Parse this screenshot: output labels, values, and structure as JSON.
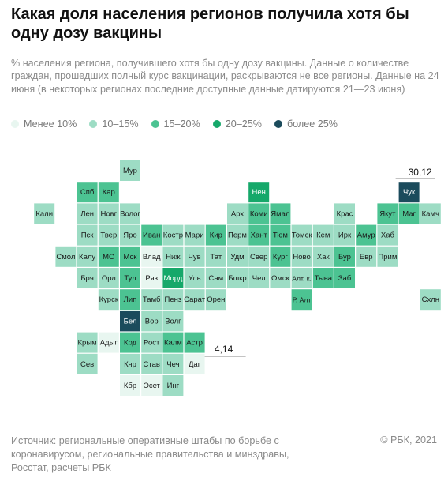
{
  "title": "Какая доля населения регионов получила хотя бы одну дозу вакцины",
  "subtitle": "% населения региона, получившего хотя бы одну дозу вакцины. Данные о количестве граждан, прошедших полный курс вакцинации, раскрываются не все регионы. Данные на 24 июня (в некоторых регионах последние доступные данные датируются 21—23 июня)",
  "footer": "Источник:  региональные оперативные штабы по борьбе с коронавирусом, региональные правительства и минздравы, Росстат, расчеты РБК",
  "copyright": "© РБК, 2021",
  "colors": {
    "lt10": "#e8f6f0",
    "10_15": "#9ddcc4",
    "15_20": "#4cc392",
    "20_25": "#16a86a",
    "gt25": "#1b4b5c"
  },
  "legend": [
    {
      "label": "Менее 10%",
      "color": "#e8f6f0"
    },
    {
      "label": "10–15%",
      "color": "#9ddcc4"
    },
    {
      "label": "15–20%",
      "color": "#4cc392"
    },
    {
      "label": "20–25%",
      "color": "#16a86a"
    },
    {
      "label": "более 25%",
      "color": "#1b4b5c"
    }
  ],
  "chart_data": {
    "type": "heatmap",
    "annotations": [
      {
        "region": "Чук",
        "value": "30,12"
      },
      {
        "region": "Даг",
        "value": "4,14"
      }
    ],
    "regions": [
      {
        "name": "Мур",
        "col": 5,
        "row": 0,
        "bin": "10_15"
      },
      {
        "name": "Спб",
        "col": 3,
        "row": 1,
        "bin": "15_20"
      },
      {
        "name": "Кар",
        "col": 4,
        "row": 1,
        "bin": "15_20"
      },
      {
        "name": "Нен",
        "col": 11,
        "row": 1,
        "bin": "20_25"
      },
      {
        "name": "Чук",
        "col": 18,
        "row": 1,
        "bin": "gt25"
      },
      {
        "name": "Кали",
        "col": 1,
        "row": 2,
        "bin": "10_15"
      },
      {
        "name": "Лен",
        "col": 3,
        "row": 2,
        "bin": "10_15"
      },
      {
        "name": "Новг",
        "col": 4,
        "row": 2,
        "bin": "10_15"
      },
      {
        "name": "Волог",
        "col": 5,
        "row": 2,
        "bin": "10_15"
      },
      {
        "name": "Арх",
        "col": 10,
        "row": 2,
        "bin": "10_15"
      },
      {
        "name": "Коми",
        "col": 11,
        "row": 2,
        "bin": "15_20"
      },
      {
        "name": "Ямал",
        "col": 12,
        "row": 2,
        "bin": "15_20"
      },
      {
        "name": "Крас",
        "col": 15,
        "row": 2,
        "bin": "10_15"
      },
      {
        "name": "Якут",
        "col": 17,
        "row": 2,
        "bin": "15_20"
      },
      {
        "name": "Маг",
        "col": 18,
        "row": 2,
        "bin": "15_20"
      },
      {
        "name": "Камч",
        "col": 19,
        "row": 2,
        "bin": "10_15"
      },
      {
        "name": "Пск",
        "col": 3,
        "row": 3,
        "bin": "10_15"
      },
      {
        "name": "Твер",
        "col": 4,
        "row": 3,
        "bin": "10_15"
      },
      {
        "name": "Яро",
        "col": 5,
        "row": 3,
        "bin": "10_15"
      },
      {
        "name": "Иван",
        "col": 6,
        "row": 3,
        "bin": "15_20"
      },
      {
        "name": "Костр",
        "col": 7,
        "row": 3,
        "bin": "10_15"
      },
      {
        "name": "Мари",
        "col": 8,
        "row": 3,
        "bin": "10_15"
      },
      {
        "name": "Кир",
        "col": 9,
        "row": 3,
        "bin": "15_20"
      },
      {
        "name": "Перм",
        "col": 10,
        "row": 3,
        "bin": "10_15"
      },
      {
        "name": "Хант",
        "col": 11,
        "row": 3,
        "bin": "15_20"
      },
      {
        "name": "Тюм",
        "col": 12,
        "row": 3,
        "bin": "15_20"
      },
      {
        "name": "Томск",
        "col": 13,
        "row": 3,
        "bin": "10_15"
      },
      {
        "name": "Кем",
        "col": 14,
        "row": 3,
        "bin": "10_15"
      },
      {
        "name": "Ирк",
        "col": 15,
        "row": 3,
        "bin": "10_15"
      },
      {
        "name": "Амур",
        "col": 16,
        "row": 3,
        "bin": "15_20"
      },
      {
        "name": "Хаб",
        "col": 17,
        "row": 3,
        "bin": "10_15"
      },
      {
        "name": "Смол",
        "col": 2,
        "row": 4,
        "bin": "10_15"
      },
      {
        "name": "Калу",
        "col": 3,
        "row": 4,
        "bin": "10_15"
      },
      {
        "name": "МО",
        "col": 4,
        "row": 4,
        "bin": "15_20"
      },
      {
        "name": "Мск",
        "col": 5,
        "row": 4,
        "bin": "15_20"
      },
      {
        "name": "Влад",
        "col": 6,
        "row": 4,
        "bin": "lt10"
      },
      {
        "name": "Ниж",
        "col": 7,
        "row": 4,
        "bin": "10_15"
      },
      {
        "name": "Чув",
        "col": 8,
        "row": 4,
        "bin": "10_15"
      },
      {
        "name": "Тат",
        "col": 9,
        "row": 4,
        "bin": "10_15"
      },
      {
        "name": "Удм",
        "col": 10,
        "row": 4,
        "bin": "10_15"
      },
      {
        "name": "Свер",
        "col": 11,
        "row": 4,
        "bin": "10_15"
      },
      {
        "name": "Кург",
        "col": 12,
        "row": 4,
        "bin": "15_20"
      },
      {
        "name": "Ново",
        "col": 13,
        "row": 4,
        "bin": "10_15"
      },
      {
        "name": "Хак",
        "col": 14,
        "row": 4,
        "bin": "10_15"
      },
      {
        "name": "Бур",
        "col": 15,
        "row": 4,
        "bin": "15_20"
      },
      {
        "name": "Евр",
        "col": 16,
        "row": 4,
        "bin": "10_15"
      },
      {
        "name": "Прим",
        "col": 17,
        "row": 4,
        "bin": "10_15"
      },
      {
        "name": "Бря",
        "col": 3,
        "row": 5,
        "bin": "10_15"
      },
      {
        "name": "Орл",
        "col": 4,
        "row": 5,
        "bin": "10_15"
      },
      {
        "name": "Тул",
        "col": 5,
        "row": 5,
        "bin": "15_20"
      },
      {
        "name": "Ряз",
        "col": 6,
        "row": 5,
        "bin": "lt10"
      },
      {
        "name": "Морд",
        "col": 7,
        "row": 5,
        "bin": "20_25"
      },
      {
        "name": "Уль",
        "col": 8,
        "row": 5,
        "bin": "10_15"
      },
      {
        "name": "Сам",
        "col": 9,
        "row": 5,
        "bin": "10_15"
      },
      {
        "name": "Бшкр",
        "col": 10,
        "row": 5,
        "bin": "10_15"
      },
      {
        "name": "Чел",
        "col": 11,
        "row": 5,
        "bin": "10_15"
      },
      {
        "name": "Омск",
        "col": 12,
        "row": 5,
        "bin": "10_15"
      },
      {
        "name": "Алт. к.",
        "col": 13,
        "row": 5,
        "bin": "10_15"
      },
      {
        "name": "Тыва",
        "col": 14,
        "row": 5,
        "bin": "15_20"
      },
      {
        "name": "Заб",
        "col": 15,
        "row": 5,
        "bin": "15_20"
      },
      {
        "name": "Курск",
        "col": 4,
        "row": 6,
        "bin": "10_15"
      },
      {
        "name": "Лип",
        "col": 5,
        "row": 6,
        "bin": "15_20"
      },
      {
        "name": "Тамб",
        "col": 6,
        "row": 6,
        "bin": "10_15"
      },
      {
        "name": "Пенз",
        "col": 7,
        "row": 6,
        "bin": "10_15"
      },
      {
        "name": "Сарат",
        "col": 8,
        "row": 6,
        "bin": "10_15"
      },
      {
        "name": "Орен",
        "col": 9,
        "row": 6,
        "bin": "10_15"
      },
      {
        "name": "Р. Алт",
        "col": 13,
        "row": 6,
        "bin": "15_20"
      },
      {
        "name": "Схлн",
        "col": 19,
        "row": 6,
        "bin": "10_15"
      },
      {
        "name": "Бел",
        "col": 5,
        "row": 7,
        "bin": "gt25"
      },
      {
        "name": "Вор",
        "col": 6,
        "row": 7,
        "bin": "10_15"
      },
      {
        "name": "Волг",
        "col": 7,
        "row": 7,
        "bin": "10_15"
      },
      {
        "name": "Крым",
        "col": 3,
        "row": 8,
        "bin": "10_15"
      },
      {
        "name": "Адыг",
        "col": 4,
        "row": 8,
        "bin": "lt10"
      },
      {
        "name": "Крд",
        "col": 5,
        "row": 8,
        "bin": "15_20"
      },
      {
        "name": "Рост",
        "col": 6,
        "row": 8,
        "bin": "10_15"
      },
      {
        "name": "Калм",
        "col": 7,
        "row": 8,
        "bin": "15_20"
      },
      {
        "name": "Астр",
        "col": 8,
        "row": 8,
        "bin": "15_20"
      },
      {
        "name": "Сев",
        "col": 3,
        "row": 9,
        "bin": "10_15"
      },
      {
        "name": "Кчр",
        "col": 5,
        "row": 9,
        "bin": "10_15"
      },
      {
        "name": "Став",
        "col": 6,
        "row": 9,
        "bin": "10_15"
      },
      {
        "name": "Чеч",
        "col": 7,
        "row": 9,
        "bin": "10_15"
      },
      {
        "name": "Даг",
        "col": 8,
        "row": 9,
        "bin": "lt10"
      },
      {
        "name": "Кбр",
        "col": 5,
        "row": 10,
        "bin": "lt10"
      },
      {
        "name": "Осет",
        "col": 6,
        "row": 10,
        "bin": "lt10"
      },
      {
        "name": "Инг",
        "col": 7,
        "row": 10,
        "bin": "10_15"
      }
    ]
  }
}
